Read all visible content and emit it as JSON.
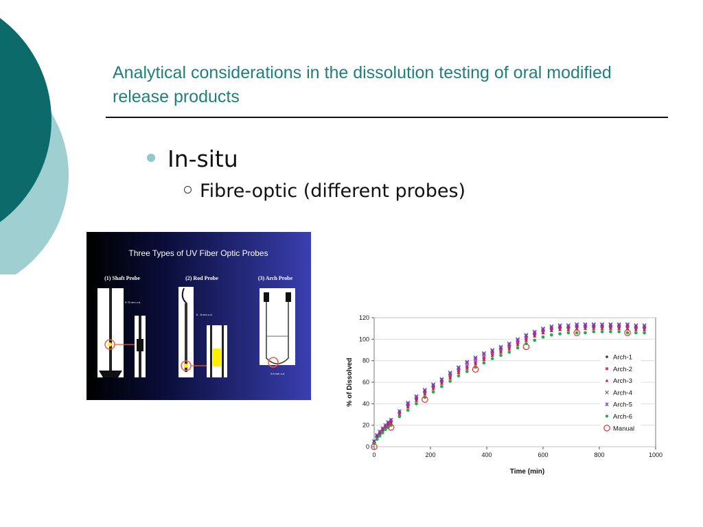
{
  "slide": {
    "title": "Analytical considerations in the dissolution testing of oral modified release products",
    "bullets": {
      "level1": "In-situ",
      "level2": "Fibre-optic (different probes)"
    },
    "colors": {
      "teal_dark": "#0c6b6a",
      "teal_light": "#9fcfd0",
      "title": "#1f7f7a"
    }
  },
  "probe_figure": {
    "heading": "Three Types of UV Fiber Optic Probes",
    "labels": [
      "(1) Shaft Probe",
      "(2) Rod Probe",
      "(3) Arch Probe"
    ],
    "dims": [
      "9.75 mm o.d.",
      "6 - 8 mm o.d.",
      "0.8 mm o.d."
    ]
  },
  "chart_data": {
    "type": "scatter",
    "xlabel": "Time (min)",
    "ylabel": "% of Dissolved",
    "xlim": [
      0,
      1000
    ],
    "ylim": [
      0,
      120
    ],
    "xticks": [
      0,
      200,
      400,
      600,
      800,
      1000
    ],
    "yticks": [
      0,
      20,
      40,
      60,
      80,
      100,
      120
    ],
    "legend_position": "right",
    "series": [
      {
        "name": "Arch-1",
        "marker": "diamond",
        "color": "#1f3fa0",
        "x": [
          0,
          10,
          20,
          30,
          40,
          50,
          60,
          90,
          120,
          150,
          180,
          210,
          240,
          270,
          300,
          330,
          360,
          390,
          420,
          450,
          480,
          510,
          540,
          570,
          600,
          630,
          660,
          690,
          720,
          750,
          780,
          810,
          840,
          870,
          900,
          930,
          960
        ],
        "y": [
          4,
          9,
          12,
          15,
          18,
          21,
          23,
          31,
          38,
          44,
          50,
          55,
          60,
          65,
          70,
          74,
          78,
          82,
          86,
          89,
          92,
          96,
          100,
          104,
          107,
          109,
          110,
          110,
          111,
          111,
          111,
          111,
          111,
          111,
          111,
          110,
          110
        ]
      },
      {
        "name": "Arch-2",
        "marker": "square",
        "color": "#cc3388",
        "x": [
          0,
          10,
          20,
          30,
          40,
          50,
          60,
          90,
          120,
          150,
          180,
          210,
          240,
          270,
          300,
          330,
          360,
          390,
          420,
          450,
          480,
          510,
          540,
          570,
          600,
          630,
          660,
          690,
          720,
          750,
          780,
          810,
          840,
          870,
          900,
          930,
          960
        ],
        "y": [
          5,
          10,
          13,
          16,
          19,
          22,
          24,
          32,
          39,
          45,
          51,
          56,
          61,
          66,
          71,
          75,
          79,
          83,
          87,
          90,
          93,
          97,
          101,
          105,
          108,
          110,
          111,
          111,
          112,
          112,
          112,
          112,
          112,
          112,
          112,
          111,
          111
        ]
      },
      {
        "name": "Arch-3",
        "marker": "triangle",
        "color": "#cc2233",
        "x": [
          0,
          10,
          20,
          30,
          40,
          50,
          60,
          90,
          120,
          150,
          180,
          210,
          240,
          270,
          300,
          330,
          360,
          390,
          420,
          450,
          480,
          510,
          540,
          570,
          600,
          630,
          660,
          690,
          720,
          750,
          780,
          810,
          840,
          870,
          900,
          930,
          960
        ],
        "y": [
          4,
          8,
          12,
          15,
          18,
          20,
          22,
          30,
          37,
          43,
          49,
          54,
          59,
          64,
          69,
          73,
          77,
          81,
          85,
          88,
          91,
          95,
          99,
          103,
          106,
          108,
          109,
          109,
          110,
          110,
          110,
          110,
          110,
          110,
          110,
          109,
          109
        ]
      },
      {
        "name": "Arch-4",
        "marker": "x",
        "color": "#5544aa",
        "x": [
          0,
          10,
          20,
          30,
          40,
          50,
          60,
          90,
          120,
          150,
          180,
          210,
          240,
          270,
          300,
          330,
          360,
          390,
          420,
          450,
          480,
          510,
          540,
          570,
          600,
          630,
          660,
          690,
          720,
          750,
          780,
          810,
          840,
          870,
          900,
          930,
          960
        ],
        "y": [
          5,
          11,
          14,
          17,
          20,
          23,
          25,
          33,
          41,
          47,
          53,
          58,
          63,
          69,
          74,
          79,
          83,
          87,
          90,
          93,
          96,
          100,
          104,
          107,
          110,
          112,
          113,
          113,
          114,
          114,
          114,
          114,
          114,
          114,
          114,
          113,
          113
        ]
      },
      {
        "name": "Arch-5",
        "marker": "star",
        "color": "#8833aa",
        "x": [
          0,
          10,
          20,
          30,
          40,
          50,
          60,
          90,
          120,
          150,
          180,
          210,
          240,
          270,
          300,
          330,
          360,
          390,
          420,
          450,
          480,
          510,
          540,
          570,
          600,
          630,
          660,
          690,
          720,
          750,
          780,
          810,
          840,
          870,
          900,
          930,
          960
        ],
        "y": [
          5,
          10,
          14,
          17,
          20,
          22,
          25,
          33,
          40,
          46,
          52,
          57,
          62,
          68,
          73,
          78,
          82,
          86,
          89,
          92,
          95,
          99,
          103,
          106,
          109,
          111,
          112,
          112,
          113,
          113,
          113,
          113,
          113,
          113,
          113,
          112,
          112
        ]
      },
      {
        "name": "Arch-6",
        "marker": "circle-filled",
        "color": "#22aa55",
        "x": [
          0,
          10,
          20,
          30,
          40,
          50,
          60,
          90,
          120,
          150,
          180,
          210,
          240,
          270,
          300,
          330,
          360,
          390,
          420,
          450,
          480,
          510,
          540,
          570,
          600,
          630,
          660,
          690,
          720,
          750,
          780,
          810,
          840,
          870,
          900,
          930,
          960
        ],
        "y": [
          3,
          7,
          10,
          13,
          16,
          18,
          20,
          28,
          34,
          40,
          46,
          51,
          56,
          61,
          66,
          70,
          74,
          78,
          82,
          85,
          88,
          92,
          96,
          99,
          102,
          104,
          105,
          106,
          106,
          106,
          107,
          107,
          107,
          107,
          106,
          106,
          106
        ]
      },
      {
        "name": "Manual",
        "marker": "circle-open",
        "color": "#dd3333",
        "x": [
          0,
          60,
          180,
          360,
          540,
          720,
          900
        ],
        "y": [
          0,
          18,
          44,
          72,
          93,
          106,
          106
        ]
      }
    ]
  }
}
